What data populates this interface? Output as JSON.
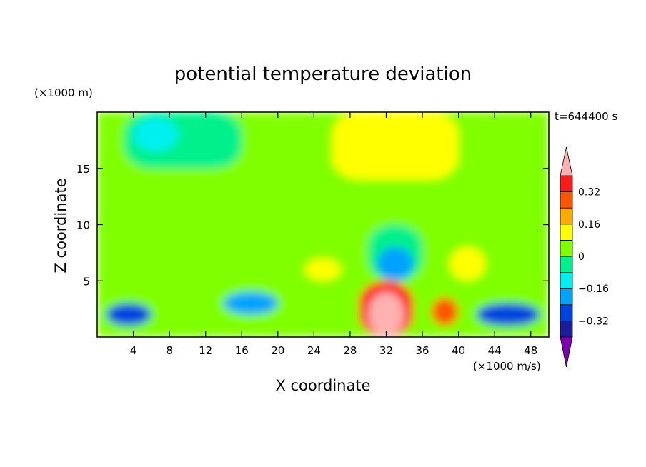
{
  "chart_data": {
    "type": "heatmap",
    "title": "potential temperature deviation",
    "time_label": "t=644400 s",
    "xlabel": "X coordinate",
    "ylabel": "Z coordinate",
    "x_unit": "(×1000 m/s)",
    "y_unit": "(×1000 m)",
    "xlim": [
      0,
      50
    ],
    "ylim": [
      0,
      20
    ],
    "x_ticks": [
      4,
      8,
      12,
      16,
      20,
      24,
      28,
      32,
      36,
      40,
      44,
      48
    ],
    "y_ticks": [
      5,
      10,
      15
    ],
    "colorbar": {
      "levels": [
        -0.4,
        -0.32,
        -0.24,
        -0.16,
        -0.08,
        0,
        0.08,
        0.16,
        0.24,
        0.32,
        0.4
      ],
      "labeled_levels": [
        0.32,
        0.16,
        0,
        -0.16,
        -0.32
      ],
      "colors": [
        "#7a00b0",
        "#1c1c9c",
        "#0044e0",
        "#00a2ff",
        "#00f0f0",
        "#00f08c",
        "#80ff00",
        "#ffff00",
        "#ffaa00",
        "#ff5500",
        "#ff1a1a",
        "#ffb0b0"
      ]
    },
    "fields": [
      {
        "value": 0,
        "x": [
          0,
          50
        ],
        "z": [
          0,
          20
        ]
      },
      {
        "value": 0.08,
        "x": [
          26,
          40
        ],
        "z": [
          14,
          20
        ]
      },
      {
        "value": -0.08,
        "x": [
          3,
          16
        ],
        "z": [
          15,
          20
        ]
      },
      {
        "value": -0.16,
        "x": [
          4,
          9
        ],
        "z": [
          16.5,
          19.5
        ]
      },
      {
        "value": -0.08,
        "x": [
          30,
          36
        ],
        "z": [
          5,
          10
        ]
      },
      {
        "value": -0.24,
        "x": [
          31,
          35
        ],
        "z": [
          5,
          8
        ]
      },
      {
        "value": 0.08,
        "x": [
          23,
          27
        ],
        "z": [
          5,
          7
        ]
      },
      {
        "value": 0.08,
        "x": [
          39,
          43
        ],
        "z": [
          5,
          8
        ]
      },
      {
        "value": 0.32,
        "x": [
          29,
          35
        ],
        "z": [
          0,
          5
        ]
      },
      {
        "value": 0.4,
        "x": [
          30,
          34
        ],
        "z": [
          0,
          4
        ]
      },
      {
        "value": -0.32,
        "x": [
          1,
          6
        ],
        "z": [
          1,
          3
        ]
      },
      {
        "value": -0.32,
        "x": [
          42,
          49
        ],
        "z": [
          1,
          3
        ]
      },
      {
        "value": 0.24,
        "x": [
          37,
          40
        ],
        "z": [
          1,
          3.5
        ]
      },
      {
        "value": -0.24,
        "x": [
          14,
          20
        ],
        "z": [
          2,
          4
        ]
      }
    ]
  }
}
